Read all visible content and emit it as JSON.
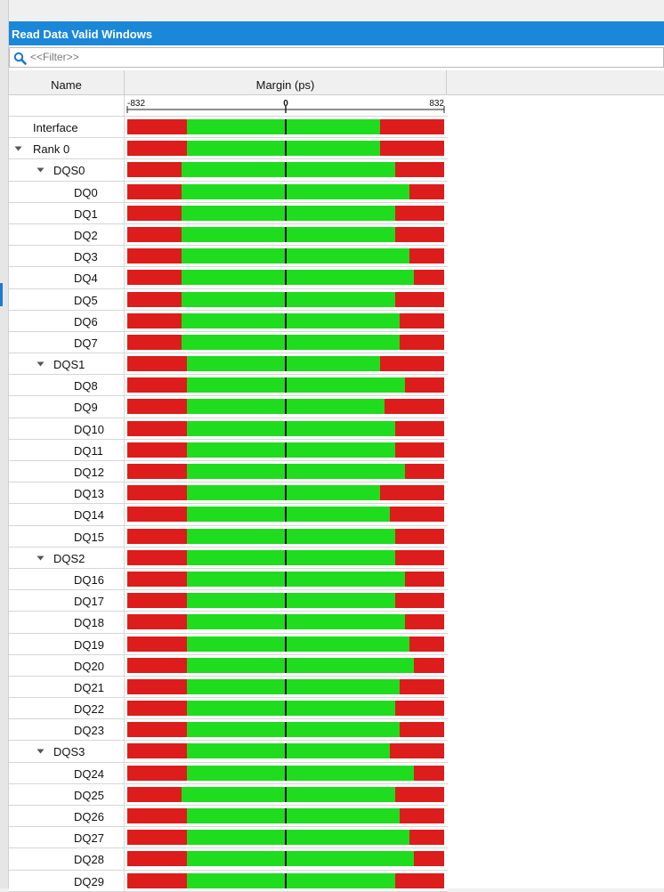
{
  "window": {
    "title": "Read Data Valid Windows"
  },
  "filter": {
    "placeholder": "<<Filter>>"
  },
  "columns": {
    "name": "Name",
    "margin": "Margin (ps)"
  },
  "axis": {
    "min_label": "-832",
    "zero_label": "0",
    "max_label": "832"
  },
  "colors": {
    "fail": "#dd1c1c",
    "pass": "#1fdc1f",
    "title_bar": "#1b87d8"
  },
  "chart_data": {
    "type": "bar",
    "orientation": "horizontal",
    "xlabel": "Margin (ps)",
    "xlim": [
      -832,
      832
    ],
    "zero": 0,
    "rows": [
      {
        "label": "Interface",
        "level": 0,
        "expander": false,
        "pass_min": -520,
        "pass_max": 495
      },
      {
        "label": "Rank 0",
        "level": 0,
        "expander": true,
        "pass_min": -520,
        "pass_max": 495
      },
      {
        "label": "DQS0",
        "level": 1,
        "expander": true,
        "pass_min": -545,
        "pass_max": 575
      },
      {
        "label": "DQ0",
        "level": 2,
        "expander": false,
        "pass_min": -545,
        "pass_max": 650
      },
      {
        "label": "DQ1",
        "level": 2,
        "expander": false,
        "pass_min": -545,
        "pass_max": 575
      },
      {
        "label": "DQ2",
        "level": 2,
        "expander": false,
        "pass_min": -545,
        "pass_max": 575
      },
      {
        "label": "DQ3",
        "level": 2,
        "expander": false,
        "pass_min": -545,
        "pass_max": 650
      },
      {
        "label": "DQ4",
        "level": 2,
        "expander": false,
        "pass_min": -545,
        "pass_max": 675
      },
      {
        "label": "DQ5",
        "level": 2,
        "expander": false,
        "pass_min": -545,
        "pass_max": 575
      },
      {
        "label": "DQ6",
        "level": 2,
        "expander": false,
        "pass_min": -545,
        "pass_max": 600
      },
      {
        "label": "DQ7",
        "level": 2,
        "expander": false,
        "pass_min": -545,
        "pass_max": 600
      },
      {
        "label": "DQS1",
        "level": 1,
        "expander": true,
        "pass_min": -520,
        "pass_max": 495
      },
      {
        "label": "DQ8",
        "level": 2,
        "expander": false,
        "pass_min": -520,
        "pass_max": 625
      },
      {
        "label": "DQ9",
        "level": 2,
        "expander": false,
        "pass_min": -520,
        "pass_max": 520
      },
      {
        "label": "DQ10",
        "level": 2,
        "expander": false,
        "pass_min": -520,
        "pass_max": 575
      },
      {
        "label": "DQ11",
        "level": 2,
        "expander": false,
        "pass_min": -520,
        "pass_max": 575
      },
      {
        "label": "DQ12",
        "level": 2,
        "expander": false,
        "pass_min": -520,
        "pass_max": 625
      },
      {
        "label": "DQ13",
        "level": 2,
        "expander": false,
        "pass_min": -520,
        "pass_max": 495
      },
      {
        "label": "DQ14",
        "level": 2,
        "expander": false,
        "pass_min": -520,
        "pass_max": 545
      },
      {
        "label": "DQ15",
        "level": 2,
        "expander": false,
        "pass_min": -520,
        "pass_max": 575
      },
      {
        "label": "DQS2",
        "level": 1,
        "expander": true,
        "pass_min": -520,
        "pass_max": 575
      },
      {
        "label": "DQ16",
        "level": 2,
        "expander": false,
        "pass_min": -520,
        "pass_max": 625
      },
      {
        "label": "DQ17",
        "level": 2,
        "expander": false,
        "pass_min": -520,
        "pass_max": 575
      },
      {
        "label": "DQ18",
        "level": 2,
        "expander": false,
        "pass_min": -520,
        "pass_max": 625
      },
      {
        "label": "DQ19",
        "level": 2,
        "expander": false,
        "pass_min": -520,
        "pass_max": 650
      },
      {
        "label": "DQ20",
        "level": 2,
        "expander": false,
        "pass_min": -520,
        "pass_max": 675
      },
      {
        "label": "DQ21",
        "level": 2,
        "expander": false,
        "pass_min": -520,
        "pass_max": 600
      },
      {
        "label": "DQ22",
        "level": 2,
        "expander": false,
        "pass_min": -520,
        "pass_max": 575
      },
      {
        "label": "DQ23",
        "level": 2,
        "expander": false,
        "pass_min": -520,
        "pass_max": 600
      },
      {
        "label": "DQS3",
        "level": 1,
        "expander": true,
        "pass_min": -520,
        "pass_max": 545
      },
      {
        "label": "DQ24",
        "level": 2,
        "expander": false,
        "pass_min": -520,
        "pass_max": 675
      },
      {
        "label": "DQ25",
        "level": 2,
        "expander": false,
        "pass_min": -545,
        "pass_max": 575
      },
      {
        "label": "DQ26",
        "level": 2,
        "expander": false,
        "pass_min": -520,
        "pass_max": 600
      },
      {
        "label": "DQ27",
        "level": 2,
        "expander": false,
        "pass_min": -520,
        "pass_max": 650
      },
      {
        "label": "DQ28",
        "level": 2,
        "expander": false,
        "pass_min": -520,
        "pass_max": 675
      },
      {
        "label": "DQ29",
        "level": 2,
        "expander": false,
        "pass_min": -520,
        "pass_max": 575
      }
    ]
  }
}
